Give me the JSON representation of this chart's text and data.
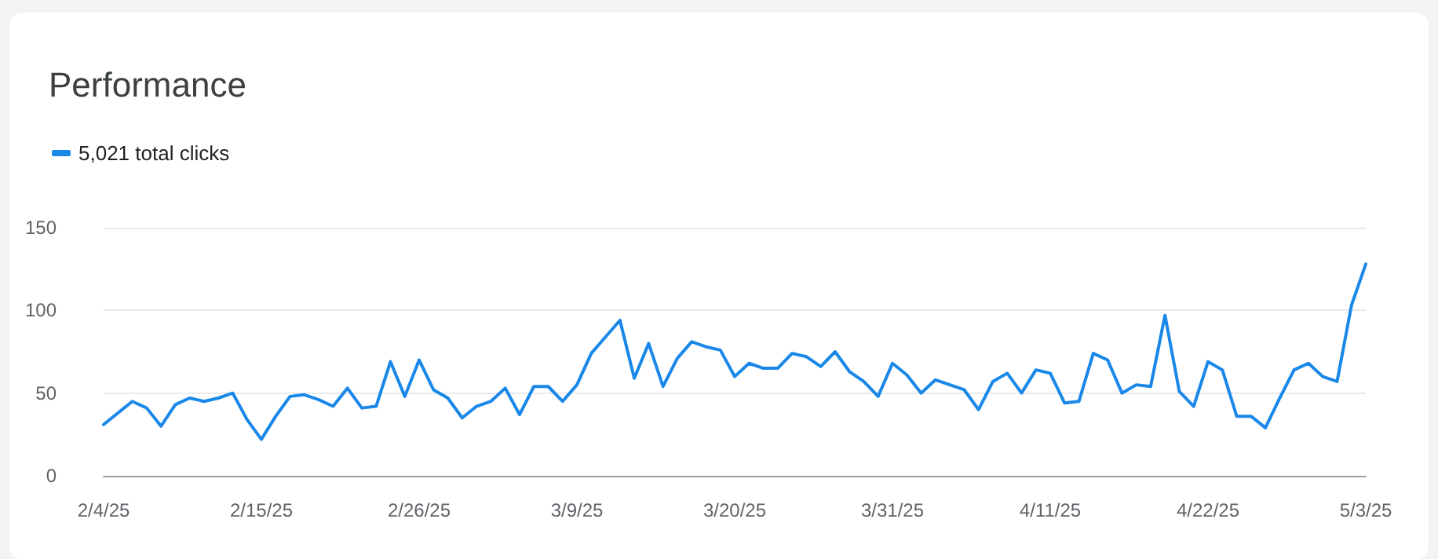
{
  "chart_data": {
    "type": "line",
    "title": "Performance",
    "categories": [
      "2/4/25",
      null,
      null,
      null,
      null,
      null,
      null,
      null,
      null,
      null,
      null,
      "2/15/25",
      null,
      null,
      null,
      null,
      null,
      null,
      null,
      null,
      null,
      null,
      "2/26/25",
      null,
      null,
      null,
      null,
      null,
      null,
      null,
      null,
      null,
      null,
      "3/9/25",
      null,
      null,
      null,
      null,
      null,
      null,
      null,
      null,
      null,
      null,
      "3/20/25",
      null,
      null,
      null,
      null,
      null,
      null,
      null,
      null,
      null,
      null,
      "3/31/25",
      null,
      null,
      null,
      null,
      null,
      null,
      null,
      null,
      null,
      null,
      "4/11/25",
      null,
      null,
      null,
      null,
      null,
      null,
      null,
      null,
      null,
      null,
      "4/22/25",
      null,
      null,
      null,
      null,
      null,
      null,
      null,
      null,
      null,
      null,
      "5/3/25"
    ],
    "series": [
      {
        "name": "5,021 total clicks",
        "color": "#1a88e8",
        "values": [
          31,
          38,
          45,
          41,
          30,
          43,
          47,
          45,
          47,
          50,
          34,
          22,
          36,
          48,
          49,
          46,
          42,
          53,
          41,
          42,
          69,
          48,
          70,
          52,
          47,
          35,
          42,
          45,
          53,
          37,
          54,
          54,
          45,
          55,
          74,
          84,
          94,
          59,
          80,
          54,
          71,
          81,
          78,
          76,
          60,
          68,
          65,
          65,
          74,
          72,
          66,
          75,
          63,
          57,
          48,
          68,
          61,
          50,
          58,
          55,
          52,
          40,
          57,
          62,
          50,
          64,
          62,
          44,
          45,
          74,
          70,
          50,
          55,
          54,
          97,
          51,
          42,
          69,
          64,
          36,
          36,
          29,
          47,
          64,
          68,
          60,
          57,
          103,
          128
        ]
      }
    ],
    "ylim": [
      0,
      150
    ],
    "yticks": [
      0,
      50,
      100,
      150
    ],
    "grid": "y",
    "legend": "top left",
    "marker": "none",
    "line_style": "solid"
  }
}
